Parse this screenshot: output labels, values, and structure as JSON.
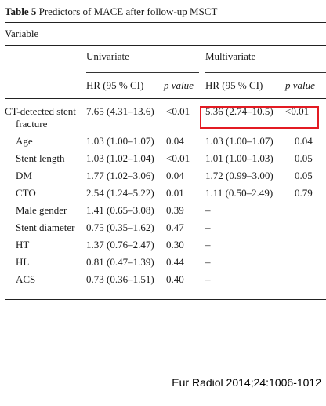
{
  "caption": {
    "label": "Table 5",
    "title": "Predictors of MACE after follow-up MSCT"
  },
  "header": {
    "variable": "Variable",
    "univariate": "Univariate",
    "multivariate": "Multivariate",
    "hr_ci": "HR (95 % CI)",
    "p_value": "p value"
  },
  "rows": [
    {
      "variable_line1": "CT-detected stent",
      "variable_line2": "fracture",
      "uni_hr": "7.65 (4.31–13.6)",
      "uni_p": "<0.01",
      "multi_hr": "5.36 (2.74–10.5)",
      "multi_p": "<0.01"
    },
    {
      "variable": "Age",
      "uni_hr": "1.03 (1.00–1.07)",
      "uni_p": "0.04",
      "multi_hr": "1.03 (1.00–1.07)",
      "multi_p": "0.04"
    },
    {
      "variable": "Stent length",
      "uni_hr": "1.03 (1.02–1.04)",
      "uni_p": "<0.01",
      "multi_hr": "1.01 (1.00–1.03)",
      "multi_p": "0.05"
    },
    {
      "variable": "DM",
      "uni_hr": "1.77 (1.02–3.06)",
      "uni_p": "0.04",
      "multi_hr": "1.72 (0.99–3.00)",
      "multi_p": "0.05"
    },
    {
      "variable": "CTO",
      "uni_hr": "2.54 (1.24–5.22)",
      "uni_p": "0.01",
      "multi_hr": "1.11 (0.50–2.49)",
      "multi_p": "0.79"
    },
    {
      "variable": "Male gender",
      "uni_hr": "1.41 (0.65–3.08)",
      "uni_p": "0.39",
      "multi_hr": "–",
      "multi_p": ""
    },
    {
      "variable": "Stent diameter",
      "uni_hr": "0.75 (0.35–1.62)",
      "uni_p": "0.47",
      "multi_hr": "–",
      "multi_p": ""
    },
    {
      "variable": "HT",
      "uni_hr": "1.37 (0.76–2.47)",
      "uni_p": "0.30",
      "multi_hr": "–",
      "multi_p": ""
    },
    {
      "variable": "HL",
      "uni_hr": "0.81 (0.47–1.39)",
      "uni_p": "0.44",
      "multi_hr": "–",
      "multi_p": ""
    },
    {
      "variable": "ACS",
      "uni_hr": "0.73 (0.36–1.51)",
      "uni_p": "0.40",
      "multi_hr": "–",
      "multi_p": ""
    }
  ],
  "highlight_color": "#e31b23",
  "citation": "Eur Radiol 2014;24:1006-1012"
}
